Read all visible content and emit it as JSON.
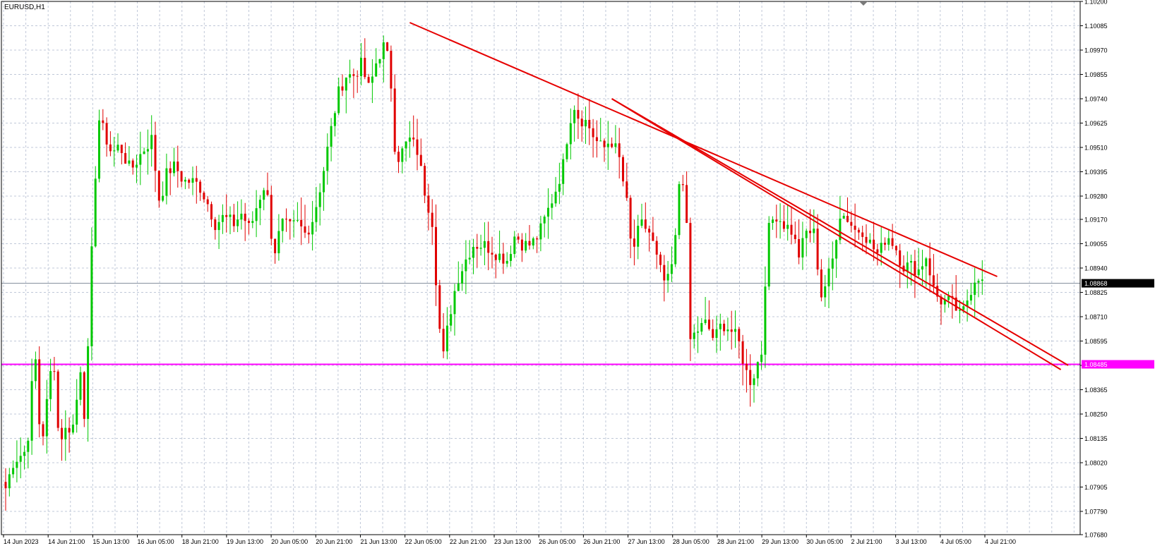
{
  "chart_data": {
    "type": "candlestick",
    "title": "EURUSD,H1",
    "symbol": "EURUSD",
    "timeframe": "H1",
    "ylim": [
      1.0768,
      1.102
    ],
    "y_ticks": [
      "1.10200",
      "1.10085",
      "1.09970",
      "1.09855",
      "1.09740",
      "1.09625",
      "1.09510",
      "1.09395",
      "1.09280",
      "1.09170",
      "1.09055",
      "1.08940",
      "1.08825",
      "1.08710",
      "1.08595",
      "1.08480",
      "1.08365",
      "1.08250",
      "1.08135",
      "1.08020",
      "1.07905",
      "1.07790",
      "1.07680"
    ],
    "x_ticks": [
      "14 Jun 2023",
      "14 Jun 21:00",
      "15 Jun 13:00",
      "16 Jun 05:00",
      "18 Jun 21:00",
      "19 Jun 13:00",
      "20 Jun 05:00",
      "20 Jun 21:00",
      "21 Jun 13:00",
      "22 Jun 05:00",
      "22 Jun 21:00",
      "23 Jun 13:00",
      "26 Jun 05:00",
      "26 Jun 21:00",
      "27 Jun 13:00",
      "28 Jun 05:00",
      "28 Jun 21:00",
      "29 Jun 13:00",
      "30 Jun 05:00",
      "2 Jul 21:00",
      "3 Jul 13:00",
      "4 Jul 05:00",
      "4 Jul 21:00"
    ],
    "bar_count": 262,
    "bull_color": "#00c800",
    "bear_color": "#e00000",
    "grid": true,
    "grid_color": "#c0c8d8",
    "current_price": "1.08868",
    "current_price_value": 1.08868,
    "horizontal_level": {
      "label": "1.08485",
      "value": 1.08485,
      "color": "#ff00ff"
    },
    "trendline_color": "#e60000",
    "anchors": [
      [
        0,
        1.079
      ],
      [
        3,
        1.0803
      ],
      [
        8,
        1.0808
      ],
      [
        10,
        1.084
      ],
      [
        12,
        1.0856
      ],
      [
        13,
        1.0805
      ],
      [
        16,
        1.0835
      ],
      [
        18,
        1.0855
      ],
      [
        20,
        1.0813
      ],
      [
        23,
        1.0818
      ],
      [
        26,
        1.082
      ],
      [
        28,
        1.085
      ],
      [
        30,
        1.082
      ],
      [
        33,
        1.092
      ],
      [
        35,
        1.0965
      ],
      [
        40,
        1.0948
      ],
      [
        43,
        1.0952
      ],
      [
        47,
        1.094
      ],
      [
        52,
        1.095
      ],
      [
        55,
        1.0955
      ],
      [
        58,
        1.0925
      ],
      [
        61,
        1.094
      ],
      [
        64,
        1.0942
      ],
      [
        67,
        1.0935
      ],
      [
        70,
        1.0935
      ],
      [
        73,
        1.0933
      ],
      [
        76,
        1.0925
      ],
      [
        79,
        1.0915
      ],
      [
        82,
        1.0918
      ],
      [
        86,
        1.0915
      ],
      [
        89,
        1.092
      ],
      [
        92,
        1.0912
      ],
      [
        95,
        1.0925
      ],
      [
        98,
        1.0935
      ],
      [
        101,
        1.09
      ],
      [
        104,
        1.0915
      ],
      [
        107,
        1.0913
      ],
      [
        110,
        1.0915
      ],
      [
        113,
        1.091
      ],
      [
        116,
        1.0918
      ],
      [
        119,
        1.0935
      ],
      [
        122,
        1.0955
      ],
      [
        125,
        1.0975
      ],
      [
        128,
        1.0985
      ],
      [
        131,
        1.0985
      ],
      [
        134,
        1.099
      ],
      [
        137,
        1.0978
      ],
      [
        140,
        1.0993
      ],
      [
        143,
        1.1
      ],
      [
        145,
        1.0985
      ],
      [
        147,
        1.0945
      ],
      [
        149,
        1.0948
      ],
      [
        152,
        1.0955
      ],
      [
        155,
        1.095
      ],
      [
        158,
        1.093
      ],
      [
        161,
        1.0915
      ],
      [
        163,
        1.087
      ],
      [
        165,
        1.0852
      ],
      [
        167,
        1.087
      ],
      [
        170,
        1.0888
      ],
      [
        173,
        1.0897
      ],
      [
        176,
        1.0905
      ],
      [
        180,
        1.0905
      ],
      [
        183,
        1.0903
      ],
      [
        186,
        1.09
      ],
      [
        189,
        1.0898
      ],
      [
        192,
        1.091
      ],
      [
        195,
        1.0905
      ],
      [
        198,
        1.0905
      ],
      [
        201,
        1.091
      ],
      [
        204,
        1.092
      ],
      [
        207,
        1.093
      ],
      [
        210,
        1.0942
      ],
      [
        212,
        1.096
      ],
      [
        214,
        1.0972
      ],
      [
        216,
        1.0965
      ],
      [
        219,
        1.0963
      ],
      [
        222,
        1.0955
      ],
      [
        225,
        1.095
      ],
      [
        228,
        1.0955
      ],
      [
        231,
        1.0947
      ],
      [
        234,
        1.0925
      ],
      [
        236,
        1.09
      ],
      [
        238,
        1.091
      ],
      [
        240,
        1.0915
      ],
      [
        243,
        1.091
      ],
      [
        246,
        1.0895
      ],
      [
        249,
        1.0885
      ],
      [
        252,
        1.09
      ],
      [
        254,
        1.0938
      ],
      [
        256,
        1.0935
      ],
      [
        258,
        1.086
      ],
      [
        261,
        1.0865
      ],
      [
        264,
        1.0868
      ],
      [
        267,
        1.086
      ],
      [
        270,
        1.0868
      ],
      [
        273,
        1.0865
      ],
      [
        276,
        1.086
      ],
      [
        279,
        1.0845
      ],
      [
        281,
        1.084
      ],
      [
        283,
        1.0848
      ],
      [
        285,
        1.0855
      ],
      [
        287,
        1.091
      ],
      [
        290,
        1.092
      ],
      [
        293,
        1.0915
      ],
      [
        296,
        1.0912
      ],
      [
        299,
        1.09
      ],
      [
        302,
        1.0912
      ],
      [
        305,
        1.091
      ],
      [
        307,
        1.088
      ],
      [
        310,
        1.089
      ],
      [
        312,
        1.09
      ],
      [
        314,
        1.092
      ],
      [
        317,
        1.0918
      ],
      [
        320,
        1.0912
      ],
      [
        323,
        1.0912
      ],
      [
        326,
        1.0905
      ],
      [
        329,
        1.09
      ],
      [
        332,
        1.091
      ],
      [
        335,
        1.0905
      ],
      [
        338,
        1.0895
      ],
      [
        341,
        1.0895
      ],
      [
        344,
        1.0893
      ],
      [
        347,
        1.09
      ],
      [
        350,
        1.0882
      ],
      [
        353,
        1.0878
      ],
      [
        356,
        1.0878
      ],
      [
        358,
        1.0875
      ],
      [
        360,
        1.087
      ],
      [
        362,
        1.0878
      ],
      [
        364,
        1.0885
      ],
      [
        366,
        1.0892
      ],
      [
        368,
        1.0887
      ]
    ]
  }
}
